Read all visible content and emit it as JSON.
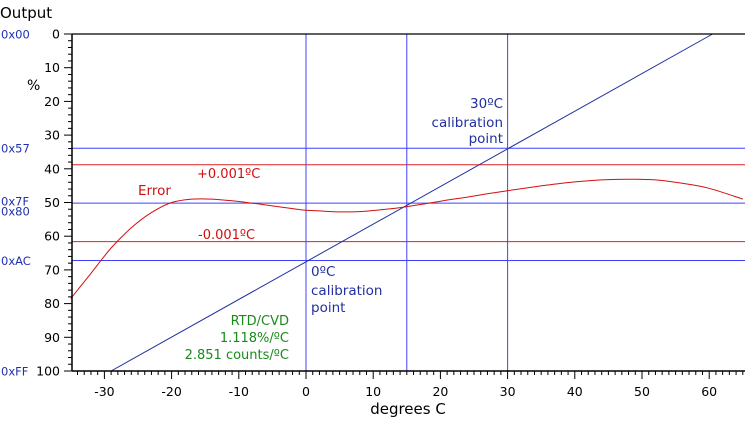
{
  "chart_data": {
    "type": "line",
    "title": "Output",
    "xlabel": "degrees C",
    "ylabel": "%",
    "xlim": [
      -35,
      65
    ],
    "ylim": [
      0,
      100
    ],
    "y_inverted": true,
    "x_ticks": [
      -30,
      -20,
      -10,
      0,
      10,
      20,
      30,
      40,
      50,
      60
    ],
    "y_ticks": [
      0,
      10,
      20,
      30,
      40,
      50,
      60,
      70,
      80,
      90,
      100
    ],
    "hex_labels": [
      {
        "label": "0x00",
        "y": 0
      },
      {
        "label": "0x57",
        "y": 33.9
      },
      {
        "label": "0x7F",
        "y": 49.6
      },
      {
        "label": "0x80",
        "y": 52.5
      },
      {
        "label": "0xAC",
        "y": 67.2
      },
      {
        "label": "0xFF",
        "y": 100
      }
    ],
    "hlines": [
      {
        "name": "hex-0x57-line",
        "y": 33.9,
        "color": "#4040ff"
      },
      {
        "name": "hex-0x80-line",
        "y": 50.2,
        "color": "#4040ff"
      },
      {
        "name": "hex-0xac-line",
        "y": 67.2,
        "color": "#4040ff"
      },
      {
        "name": "plus-error-limit-line",
        "y": 38.8,
        "color": "#e02020"
      },
      {
        "name": "minus-error-limit-line",
        "y": 61.6,
        "color": "#e02020"
      }
    ],
    "vlines": [
      {
        "name": "vline-0c",
        "x": 0
      },
      {
        "name": "vline-15c",
        "x": 15
      },
      {
        "name": "vline-30c",
        "x": 30
      }
    ],
    "series": [
      {
        "name": "RTD/CVD",
        "color": "#2030a0",
        "x": [
          -29,
          60.5
        ],
        "y": [
          100,
          0
        ]
      },
      {
        "name": "Error",
        "color": "#d01010",
        "x": [
          -35,
          -32,
          -29,
          -26,
          -23,
          -20,
          -17,
          -14,
          -11,
          -8,
          -5,
          -2,
          0,
          2,
          5,
          8,
          11,
          14,
          17,
          20,
          24,
          28,
          32,
          36,
          40,
          44,
          48,
          52,
          56,
          60,
          65
        ],
        "y": [
          78.5,
          71,
          63.5,
          57.5,
          53,
          50,
          49,
          49,
          49.5,
          50.2,
          51,
          51.8,
          52.3,
          52.5,
          52.8,
          52.7,
          52.2,
          51.5,
          50.6,
          49.6,
          48.4,
          47.1,
          45.9,
          44.8,
          43.9,
          43.3,
          43.1,
          43.3,
          44.3,
          45.8,
          49
        ]
      }
    ],
    "annotations": [
      {
        "text": "Error",
        "color": "#d01010"
      },
      {
        "text": "+0.001ºC",
        "color": "#d01010"
      },
      {
        "text": "-0.001ºC",
        "color": "#d01010"
      },
      {
        "text": "30ºC",
        "color": "#2030a0"
      },
      {
        "text": "calibration",
        "color": "#2030a0"
      },
      {
        "text": "point",
        "color": "#2030a0"
      },
      {
        "text": "0ºC",
        "color": "#2030a0"
      },
      {
        "text": "calibration",
        "color": "#2030a0"
      },
      {
        "text": "point",
        "color": "#2030a0"
      },
      {
        "text": "RTD/CVD",
        "color": "#1a8a1a"
      },
      {
        "text": "1.118%/ºC",
        "color": "#1a8a1a"
      },
      {
        "text": "2.851 counts/ºC",
        "color": "#1a8a1a"
      }
    ]
  }
}
